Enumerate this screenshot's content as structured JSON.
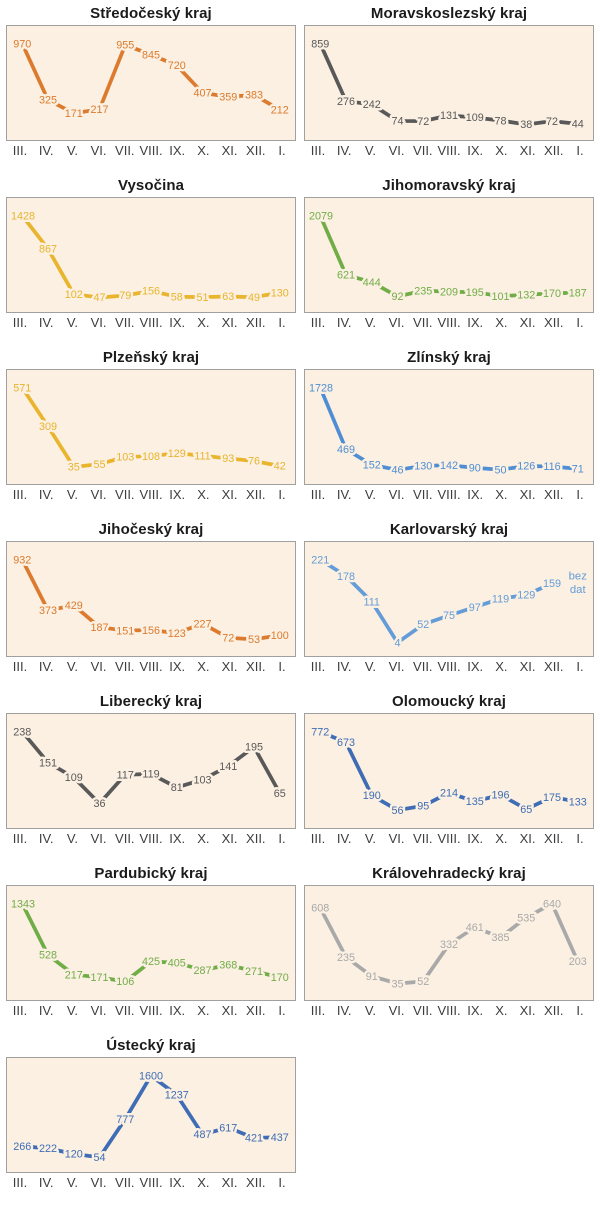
{
  "style": {
    "plot_background": "#fbf0e2",
    "plot_border": "#a0a0a0",
    "title_color": "#1b1b1b",
    "axis_label_color": "#3d3d3d",
    "line_width": 3.8
  },
  "months": [
    "III.",
    "IV.",
    "V.",
    "VI.",
    "VII.",
    "VIII.",
    "IX.",
    "X.",
    "XI.",
    "XII.",
    "I."
  ],
  "chart_data": [
    {
      "type": "line",
      "title": "Středočeský kraj",
      "color": "#dc7b2e",
      "categories": [
        "III.",
        "IV.",
        "V.",
        "VI.",
        "VII.",
        "VIII.",
        "IX.",
        "X.",
        "XI.",
        "XII.",
        "I."
      ],
      "values": [
        970,
        325,
        171,
        217,
        955,
        845,
        720,
        407,
        359,
        383,
        212
      ],
      "ylim": [
        0,
        970
      ],
      "grid": false,
      "point_labels": true
    },
    {
      "type": "line",
      "title": "Moravskoslezský kraj",
      "color": "#595959",
      "categories": [
        "III.",
        "IV.",
        "V.",
        "VI.",
        "VII.",
        "VIII.",
        "IX.",
        "X.",
        "XI.",
        "XII.",
        "I."
      ],
      "values": [
        859,
        276,
        242,
        74,
        72,
        131,
        109,
        78,
        38,
        72,
        44
      ],
      "ylim": [
        0,
        859
      ],
      "grid": false,
      "point_labels": true
    },
    {
      "type": "line",
      "title": "Vysočina",
      "color": "#e9b42e",
      "categories": [
        "III.",
        "IV.",
        "V.",
        "VI.",
        "VII.",
        "VIII.",
        "IX.",
        "X.",
        "XI.",
        "XII.",
        "I."
      ],
      "values": [
        1428,
        867,
        102,
        47,
        79,
        156,
        58,
        51,
        63,
        49,
        130
      ],
      "ylim": [
        0,
        1428
      ],
      "grid": false,
      "point_labels": true
    },
    {
      "type": "line",
      "title": "Jihomoravský kraj",
      "color": "#71ad47",
      "categories": [
        "III.",
        "IV.",
        "V.",
        "VI.",
        "VII.",
        "VIII.",
        "IX.",
        "X.",
        "XI.",
        "XII.",
        "I."
      ],
      "values": [
        2079,
        621,
        444,
        92,
        235,
        209,
        195,
        101,
        132,
        170,
        187
      ],
      "ylim": [
        0,
        2079
      ],
      "grid": false,
      "point_labels": true
    },
    {
      "type": "line",
      "title": "Plzeňský kraj",
      "color": "#e9b42e",
      "categories": [
        "III.",
        "IV.",
        "V.",
        "VI.",
        "VII.",
        "VIII.",
        "IX.",
        "X.",
        "XI.",
        "XII.",
        "I."
      ],
      "values": [
        571,
        309,
        35,
        55,
        103,
        108,
        129,
        111,
        93,
        76,
        42
      ],
      "ylim": [
        0,
        571
      ],
      "grid": false,
      "point_labels": true
    },
    {
      "type": "line",
      "title": "Zlínský kraj",
      "color": "#4f8ed3",
      "categories": [
        "III.",
        "IV.",
        "V.",
        "VI.",
        "VII.",
        "VIII.",
        "IX.",
        "X.",
        "XI.",
        "XII.",
        "I."
      ],
      "values": [
        1728,
        469,
        152,
        46,
        130,
        142,
        90,
        50,
        126,
        116,
        71
      ],
      "ylim": [
        0,
        1728
      ],
      "grid": false,
      "point_labels": true
    },
    {
      "type": "line",
      "title": "Jihočeský kraj",
      "color": "#dc7b2e",
      "categories": [
        "III.",
        "IV.",
        "V.",
        "VI.",
        "VII.",
        "VIII.",
        "IX.",
        "X.",
        "XI.",
        "XII.",
        "I."
      ],
      "values": [
        932,
        373,
        429,
        187,
        151,
        156,
        123,
        227,
        72,
        53,
        100
      ],
      "ylim": [
        0,
        932
      ],
      "grid": false,
      "point_labels": true
    },
    {
      "type": "line",
      "title": "Karlovarský kraj",
      "color": "#649cd8",
      "categories": [
        "III.",
        "IV.",
        "V.",
        "VI.",
        "VII.",
        "VIII.",
        "IX.",
        "X.",
        "XI.",
        "XII.",
        "I."
      ],
      "values": [
        221,
        178,
        111,
        4,
        52,
        75,
        97,
        119,
        129,
        159,
        null
      ],
      "ylim": [
        0,
        221
      ],
      "grid": false,
      "point_labels": true,
      "annotation": {
        "lines": [
          "bez",
          "dat"
        ],
        "at_category": "I.",
        "meaning": "no data"
      }
    },
    {
      "type": "line",
      "title": "Liberecký kraj",
      "color": "#595959",
      "categories": [
        "III.",
        "IV.",
        "V.",
        "VI.",
        "VII.",
        "VIII.",
        "IX.",
        "X.",
        "XI.",
        "XII.",
        "I."
      ],
      "values": [
        238,
        151,
        109,
        36,
        117,
        119,
        81,
        103,
        141,
        195,
        65
      ],
      "ylim": [
        0,
        238
      ],
      "grid": false,
      "point_labels": true
    },
    {
      "type": "line",
      "title": "Olomoucký kraj",
      "color": "#3e6db5",
      "categories": [
        "III.",
        "IV.",
        "V.",
        "VI.",
        "VII.",
        "VIII.",
        "IX.",
        "X.",
        "XI.",
        "XII.",
        "I."
      ],
      "values": [
        772,
        673,
        190,
        56,
        95,
        214,
        135,
        196,
        65,
        175,
        133
      ],
      "ylim": [
        0,
        772
      ],
      "grid": false,
      "point_labels": true
    },
    {
      "type": "line",
      "title": "Pardubický kraj",
      "color": "#71ad47",
      "categories": [
        "III.",
        "IV.",
        "V.",
        "VI.",
        "VII.",
        "VIII.",
        "IX.",
        "X.",
        "XI.",
        "XII.",
        "I."
      ],
      "values": [
        1343,
        528,
        217,
        171,
        106,
        425,
        405,
        287,
        368,
        271,
        170
      ],
      "ylim": [
        0,
        1343
      ],
      "grid": false,
      "point_labels": true
    },
    {
      "type": "line",
      "title": "Královehradecký kraj",
      "color": "#a9a9a9",
      "categories": [
        "III.",
        "IV.",
        "V.",
        "VI.",
        "VII.",
        "VIII.",
        "IX.",
        "X.",
        "XI.",
        "XII.",
        "I."
      ],
      "values": [
        608,
        235,
        91,
        35,
        52,
        332,
        461,
        385,
        535,
        640,
        203
      ],
      "ylim": [
        0,
        640
      ],
      "grid": false,
      "point_labels": true
    },
    {
      "type": "line",
      "title": "Ústecký kraj",
      "color": "#3e6db5",
      "categories": [
        "III.",
        "IV.",
        "V.",
        "VI.",
        "VII.",
        "VIII.",
        "IX.",
        "X.",
        "XI.",
        "XII.",
        "I."
      ],
      "values": [
        266,
        222,
        120,
        54,
        777,
        1600,
        1237,
        487,
        617,
        421,
        437
      ],
      "ylim": [
        0,
        1600
      ],
      "grid": false,
      "point_labels": true
    }
  ]
}
